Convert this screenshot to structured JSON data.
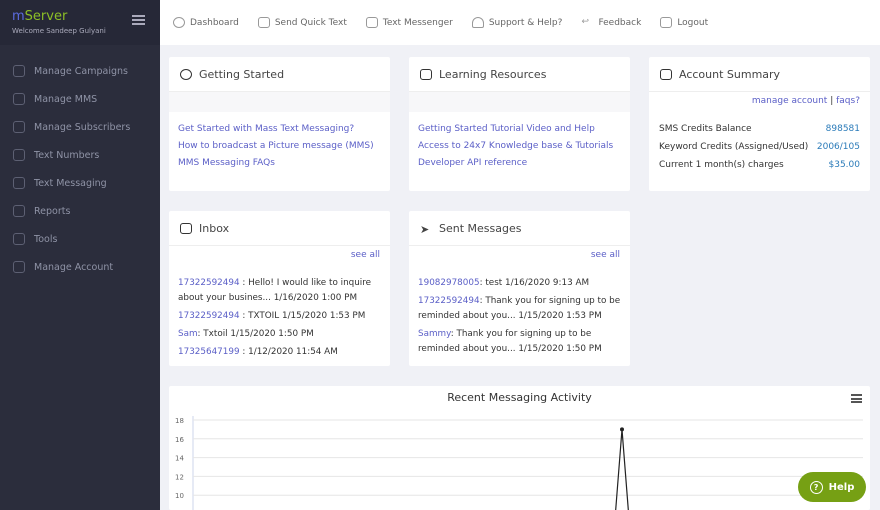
{
  "sidebar": {
    "logo_m": "m",
    "logo_rest": "Server",
    "welcome": "Welcome Sandeep Gulyani",
    "items": [
      {
        "label": "Manage Campaigns"
      },
      {
        "label": "Manage MMS"
      },
      {
        "label": "Manage Subscribers"
      },
      {
        "label": "Text Numbers"
      },
      {
        "label": "Text Messaging"
      },
      {
        "label": "Reports"
      },
      {
        "label": "Tools"
      },
      {
        "label": "Manage Account"
      }
    ]
  },
  "topnav": [
    {
      "label": "Dashboard"
    },
    {
      "label": "Send Quick Text"
    },
    {
      "label": "Text Messenger"
    },
    {
      "label": "Support & Help?"
    },
    {
      "label": "Feedback"
    },
    {
      "label": "Logout"
    }
  ],
  "getting_started": {
    "title": "Getting Started",
    "links": [
      "Get Started with Mass Text Messaging?",
      "How to broadcast a Picture message (MMS)",
      "MMS Messaging FAQs"
    ]
  },
  "learning": {
    "title": "Learning Resources",
    "links": [
      "Getting Started Tutorial Video and Help",
      "Access to 24x7 Knowledge base & Tutorials",
      "Developer API reference"
    ]
  },
  "account": {
    "title": "Account Summary",
    "manage": "manage account",
    "sep": "|",
    "faqs": "faqs?",
    "rows": [
      {
        "label": "SMS Credits Balance",
        "value": "898581"
      },
      {
        "label": "Keyword Credits (Assigned/Used)",
        "value": "2006/105"
      },
      {
        "label": "Current 1 month(s) charges",
        "value": "$35.00"
      }
    ]
  },
  "inbox": {
    "title": "Inbox",
    "see_all": "see all",
    "items": [
      {
        "from": "17322592494",
        "text": " : Hello! I would like to inquire about your busines... 1/16/2020 1:00 PM"
      },
      {
        "from": "17322592494",
        "text": " : TXTOIL 1/15/2020 1:53 PM"
      },
      {
        "from": "Sam",
        "text": ": Txtoil 1/15/2020 1:50 PM"
      },
      {
        "from": "17325647199",
        "text": " : 1/12/2020 11:54 AM"
      }
    ]
  },
  "sent": {
    "title": "Sent Messages",
    "see_all": "see all",
    "items": [
      {
        "to": "19082978005",
        "text": ": test 1/16/2020 9:13 AM"
      },
      {
        "to": "17322592494",
        "text": ": Thank you for signing up to be reminded about you... 1/15/2020 1:53 PM"
      },
      {
        "to": "Sammy",
        "text": ": Thank you for signing up to be reminded about you... 1/15/2020 1:50 PM"
      }
    ]
  },
  "chart_data": {
    "type": "line",
    "title": "Recent Messaging Activity",
    "y_ticks": [
      "18",
      "16",
      "14",
      "12",
      "10"
    ],
    "visible_peak": 17,
    "grid": true,
    "color": "#222222"
  },
  "help": {
    "label": "Help",
    "icon": "?"
  }
}
